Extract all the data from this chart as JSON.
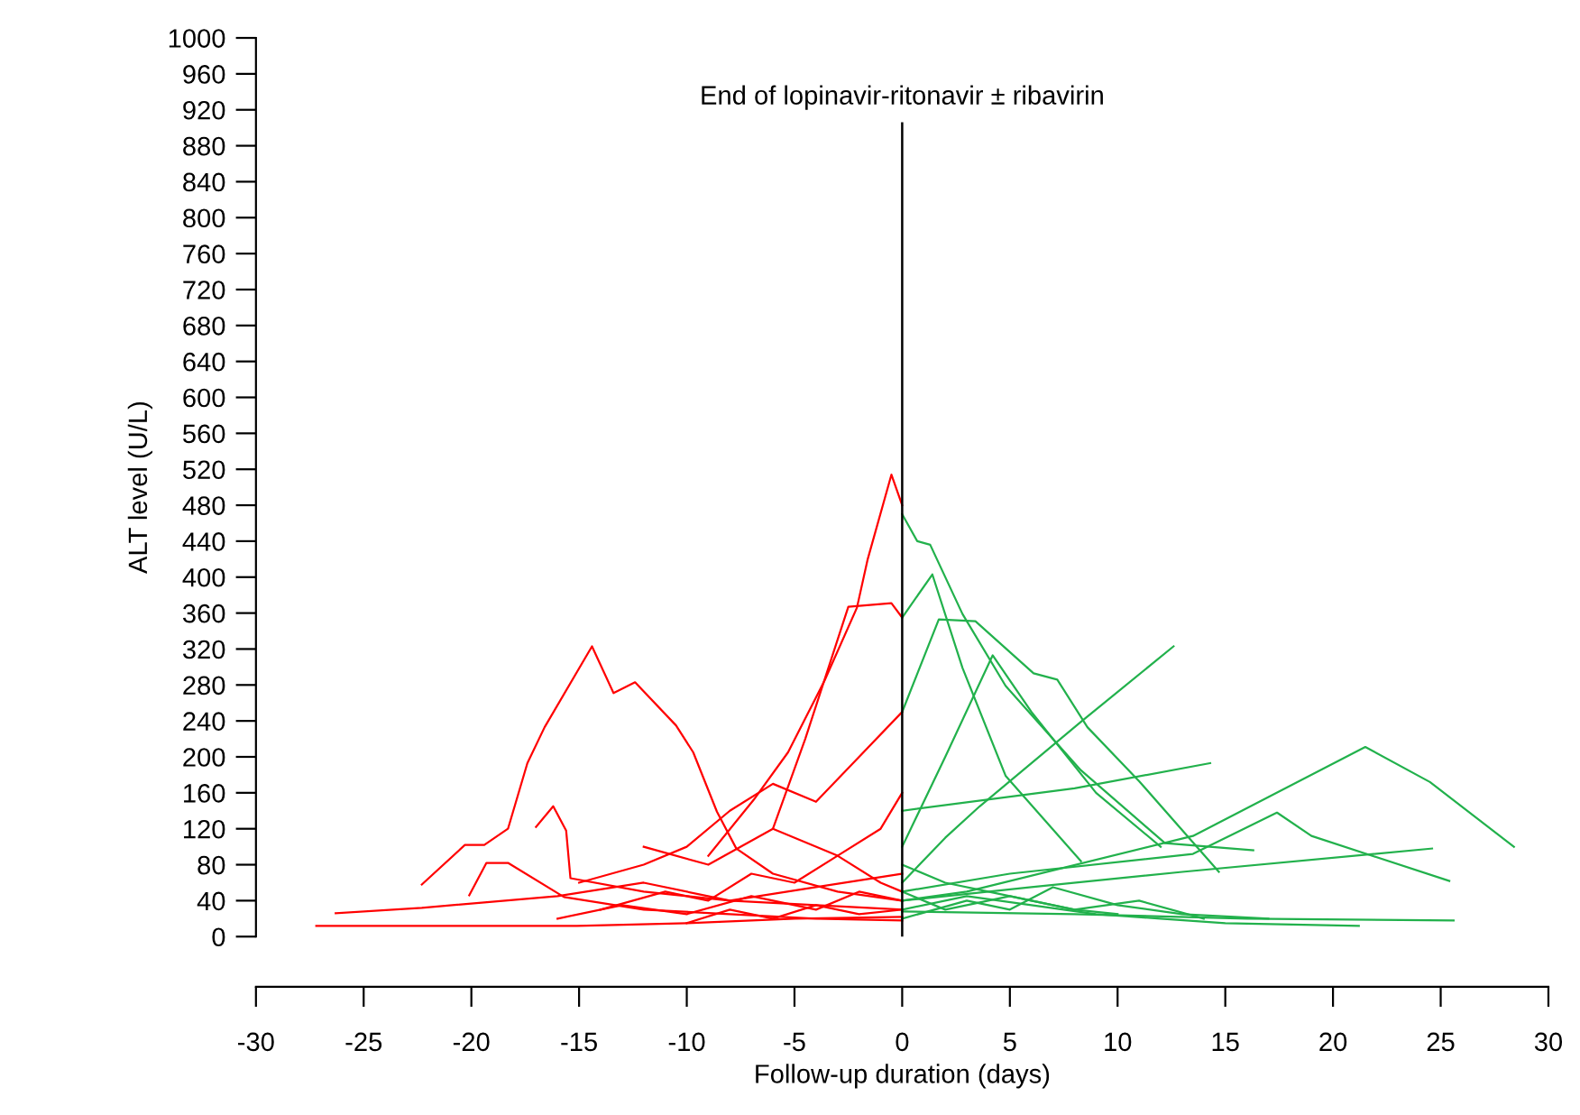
{
  "chart_data": {
    "type": "line",
    "xlabel": "Follow-up duration (days)",
    "ylabel": "ALT level (U/L)",
    "xlim": [
      -30,
      30
    ],
    "xticks": [
      -30,
      -25,
      -20,
      -15,
      -10,
      -5,
      0,
      5,
      10,
      15,
      20,
      25,
      30
    ],
    "ylim": [
      0,
      1000
    ],
    "yticks": [
      0,
      40,
      80,
      120,
      160,
      200,
      240,
      280,
      320,
      360,
      400,
      440,
      480,
      520,
      560,
      600,
      640,
      680,
      720,
      760,
      800,
      840,
      880,
      920,
      960,
      1000
    ],
    "grid": false,
    "legend": false,
    "marker": "none",
    "line_style": "solid",
    "ref_lines": [
      {
        "axis": "x",
        "value": 0,
        "label": "End of lopinavir-ritonavir ± ribavirin",
        "color": "#000000"
      }
    ],
    "series": [
      {
        "color": "#ff0000",
        "x": [
          -22.3,
          -20.3,
          -19.4,
          -18.3,
          -17.4,
          -16.6,
          -14.4,
          -13.4,
          -12.4,
          -10.5,
          -9.7,
          -8.6,
          -7.7,
          -6,
          -3,
          0
        ],
        "values": [
          58,
          102,
          102,
          120,
          193,
          233,
          323,
          271,
          283,
          235,
          205,
          139,
          98,
          70,
          50,
          40
        ]
      },
      {
        "color": "#ff0000",
        "x": [
          -9,
          -6.9,
          -5.3,
          -3.6,
          -2.1,
          -1.6,
          -0.5,
          0
        ],
        "values": [
          90,
          152,
          205,
          285,
          366,
          420,
          514,
          480
        ]
      },
      {
        "color": "#ff0000",
        "x": [
          -6,
          -4.5,
          -2.5,
          -0.5,
          0
        ],
        "values": [
          120,
          220,
          367,
          371,
          355
        ]
      },
      {
        "color": "#ff0000",
        "x": [
          -17.0,
          -16.2,
          -15.6,
          -15.4,
          -12,
          -8,
          -4,
          0
        ],
        "values": [
          122,
          145,
          118,
          65,
          50,
          40,
          35,
          30
        ]
      },
      {
        "color": "#ff0000",
        "x": [
          -20.1,
          -19.3,
          -18.3,
          -15.7,
          -12,
          -8,
          -4,
          0
        ],
        "values": [
          46,
          82,
          82,
          44,
          30,
          25,
          20,
          18
        ]
      },
      {
        "color": "#ff0000",
        "x": [
          -27.2,
          -15.1,
          -10,
          -5,
          0
        ],
        "values": [
          12,
          12,
          15,
          20,
          22
        ]
      },
      {
        "color": "#ff0000",
        "x": [
          -26.3,
          -22.3,
          -16,
          -12,
          -8,
          -4,
          0
        ],
        "values": [
          26,
          32,
          45,
          60,
          40,
          55,
          70
        ]
      },
      {
        "color": "#ff0000",
        "x": [
          -15,
          -12,
          -10,
          -8,
          -6,
          -4,
          -2,
          0
        ],
        "values": [
          60,
          80,
          100,
          140,
          170,
          150,
          200,
          250
        ]
      },
      {
        "color": "#ff0000",
        "x": [
          -14,
          -11,
          -9,
          -7,
          -5,
          -3,
          -1,
          0
        ],
        "values": [
          30,
          50,
          40,
          70,
          60,
          90,
          120,
          160
        ]
      },
      {
        "color": "#ff0000",
        "x": [
          -16,
          -13,
          -10,
          -7,
          -4,
          -2,
          0
        ],
        "values": [
          20,
          35,
          25,
          45,
          30,
          50,
          40
        ]
      },
      {
        "color": "#ff0000",
        "x": [
          -12,
          -9,
          -6,
          -3,
          -1,
          0
        ],
        "values": [
          100,
          80,
          120,
          90,
          60,
          50
        ]
      },
      {
        "color": "#ff0000",
        "x": [
          -10,
          -8,
          -6,
          -4,
          -2,
          0
        ],
        "values": [
          15,
          30,
          20,
          35,
          25,
          30
        ]
      },
      {
        "color": "#22b14c",
        "x": [
          0,
          0.7,
          1.3,
          2.8,
          4.8,
          8.3,
          12.2,
          16.3
        ],
        "values": [
          470,
          440,
          436,
          359,
          279,
          185,
          104,
          96
        ]
      },
      {
        "color": "#22b14c",
        "x": [
          0,
          1.4,
          2.8,
          4.8,
          8.3
        ],
        "values": [
          355,
          403,
          299,
          179,
          84
        ]
      },
      {
        "color": "#22b14c",
        "x": [
          0,
          1.7,
          3.4,
          6.1,
          7.2,
          8.6,
          11.0,
          14.7
        ],
        "values": [
          250,
          353,
          351,
          293,
          286,
          233,
          173,
          72
        ]
      },
      {
        "color": "#22b14c",
        "x": [
          0,
          3,
          13.5,
          21.5,
          24.5,
          28.4
        ],
        "values": [
          40,
          50,
          112,
          211,
          172,
          100
        ]
      },
      {
        "color": "#22b14c",
        "x": [
          0,
          2,
          3.6,
          8.3,
          12.6
        ],
        "values": [
          60,
          110,
          145,
          239,
          323
        ]
      },
      {
        "color": "#22b14c",
        "x": [
          0,
          5,
          13.5,
          17.4,
          19,
          25.4
        ],
        "values": [
          50,
          70,
          92,
          138,
          112,
          62
        ]
      },
      {
        "color": "#22b14c",
        "x": [
          0,
          6,
          13.0,
          24.6
        ],
        "values": [
          40,
          55,
          72,
          98
        ]
      },
      {
        "color": "#22b14c",
        "x": [
          0,
          8,
          16,
          25.6
        ],
        "values": [
          28,
          25,
          20,
          18
        ]
      },
      {
        "color": "#22b14c",
        "x": [
          0,
          8,
          14.3
        ],
        "values": [
          140,
          165,
          193
        ]
      },
      {
        "color": "#22b14c",
        "x": [
          0,
          2,
          4.2,
          6,
          9,
          12
        ],
        "values": [
          100,
          200,
          313,
          250,
          160,
          100
        ]
      },
      {
        "color": "#22b14c",
        "x": [
          0,
          3,
          6,
          9,
          12,
          15,
          21.2
        ],
        "values": [
          30,
          45,
          35,
          25,
          20,
          15,
          12
        ]
      },
      {
        "color": "#22b14c",
        "x": [
          0,
          2,
          4,
          6,
          8,
          10
        ],
        "values": [
          80,
          60,
          50,
          40,
          30,
          25
        ]
      },
      {
        "color": "#22b14c",
        "x": [
          0,
          3,
          5,
          7,
          10,
          13,
          17
        ],
        "values": [
          20,
          40,
          30,
          55,
          35,
          25,
          20
        ]
      },
      {
        "color": "#22b14c",
        "x": [
          0,
          2,
          5,
          8,
          11,
          14
        ],
        "values": [
          50,
          30,
          45,
          30,
          40,
          20
        ]
      }
    ]
  }
}
